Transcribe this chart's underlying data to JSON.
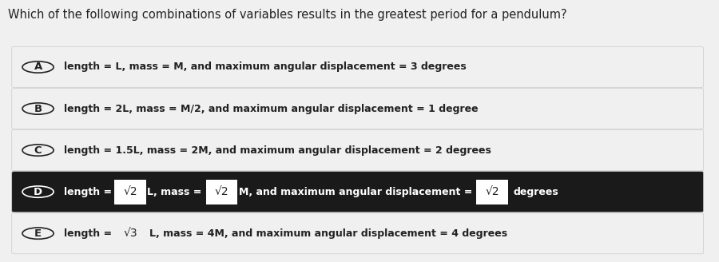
{
  "title": "Which of the following combinations of variables results in the greatest period for a pendulum?",
  "title_fontsize": 10.5,
  "bg_color": "#f0f0f0",
  "options": [
    {
      "label": "A",
      "type": "normal",
      "text": "length = L, mass = M, and maximum angular displacement = 3 degrees",
      "bg": "#f0f0f0",
      "text_color": "#222222",
      "label_color": "#222222"
    },
    {
      "label": "B",
      "type": "normal",
      "text": "length = 2L, mass = M/2, and maximum angular displacement = 1 degree",
      "bg": "#f0f0f0",
      "text_color": "#222222",
      "label_color": "#222222"
    },
    {
      "label": "C",
      "type": "normal",
      "text": "length = 1.5L, mass = 2M, and maximum angular displacement = 2 degrees",
      "bg": "#f0f0f0",
      "text_color": "#222222",
      "label_color": "#222222"
    },
    {
      "label": "D",
      "type": "sqrt_d",
      "text_before1": "length = ",
      "sqrt1": "√2",
      "text_between1": "L, mass = ",
      "sqrt2": "√2",
      "text_between2": "M, and maximum angular displacement = ",
      "sqrt3": "√2",
      "text_after": "degrees",
      "bg": "#1a1a1a",
      "text_color": "#ffffff",
      "label_color": "#ffffff"
    },
    {
      "label": "E",
      "type": "sqrt_e",
      "text_before": "length = ",
      "sqrt1": "√3",
      "text_after": "L, mass = 4M, and maximum angular displacement = 4 degrees",
      "bg": "#f0f0f0",
      "text_color": "#222222",
      "label_color": "#222222"
    }
  ]
}
